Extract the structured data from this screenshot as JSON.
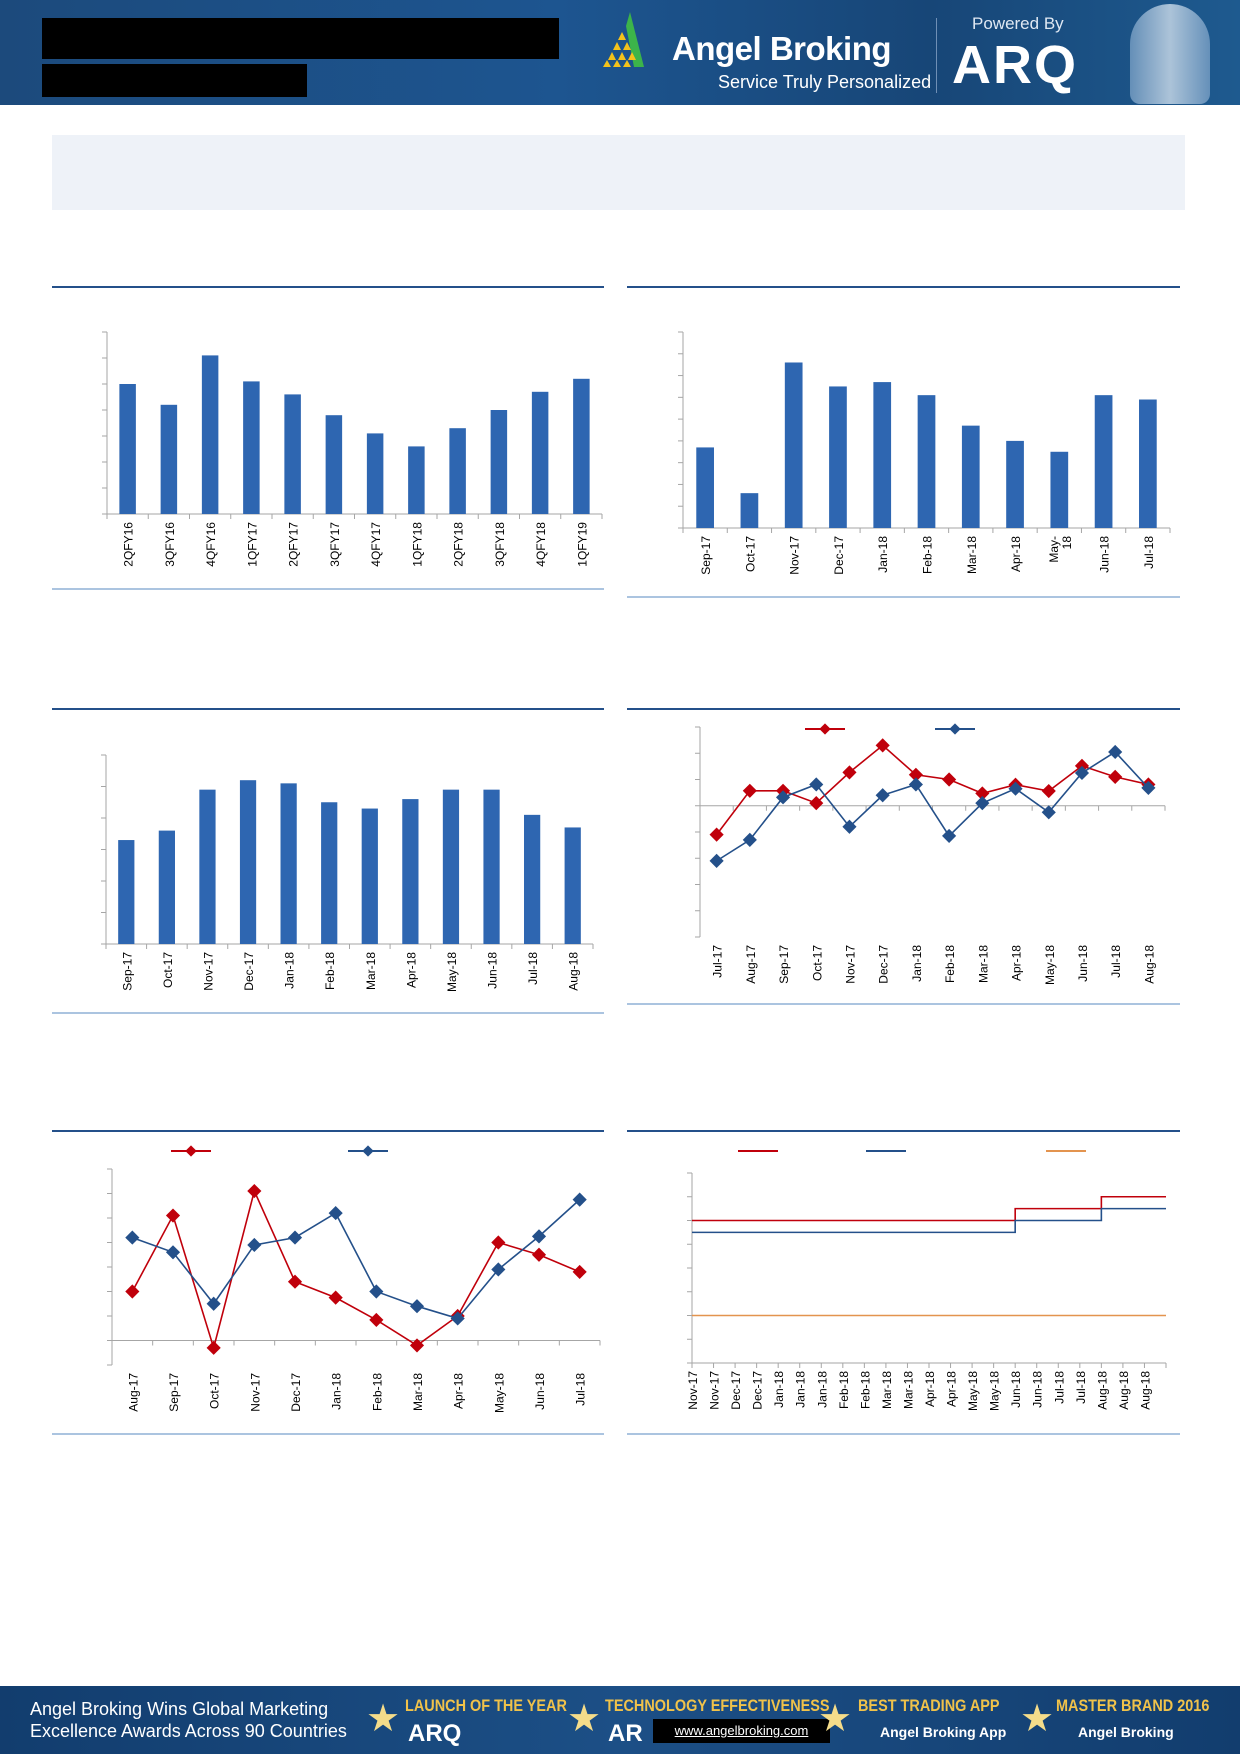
{
  "header": {
    "brand": "Angel Broking",
    "tagline": "Service Truly Personalized",
    "powered_by": "Powered By",
    "product": "ARQ"
  },
  "footer": {
    "headline_line1": "Angel Broking Wins Global Marketing",
    "headline_line2": "Excellence Awards Across 90 Countries",
    "awards": [
      {
        "title": "LAUNCH OF THE YEAR",
        "subtitle": "ARQ"
      },
      {
        "title": "TECHNOLOGY EFFECTIVENESS",
        "subtitle": "AR"
      },
      {
        "title": "BEST TRADING APP",
        "subtitle": "Angel Broking App"
      },
      {
        "title": "MASTER BRAND 2016",
        "subtitle": "Angel Broking"
      }
    ],
    "url": "www.angelbroking.com"
  },
  "colors": {
    "bar": "#2e66b1",
    "red": "#c0000b",
    "blue": "#24508a",
    "orange": "#e3944f",
    "rule": "#24508a"
  },
  "chart_data": [
    {
      "type": "bar",
      "categories": [
        "2QFY16",
        "3QFY16",
        "4QFY16",
        "1QFY17",
        "2QFY17",
        "3QFY17",
        "4QFY17",
        "1QFY18",
        "2QFY18",
        "3QFY18",
        "4QFY18",
        "1QFY19"
      ],
      "values": [
        5.0,
        4.2,
        6.1,
        5.1,
        4.6,
        3.8,
        3.1,
        2.6,
        3.3,
        4.0,
        4.7,
        5.2
      ],
      "ylim": [
        0,
        7
      ],
      "grid": false
    },
    {
      "type": "bar",
      "categories": [
        "Sep-17",
        "Oct-17",
        "Nov-17",
        "Dec-17",
        "Jan-18",
        "Feb-18",
        "Mar-18",
        "Apr-18",
        "May-\n18",
        "Jun-18",
        "Jul-18"
      ],
      "values": [
        3.7,
        1.6,
        7.6,
        6.5,
        6.7,
        6.1,
        4.7,
        4.0,
        3.5,
        6.1,
        5.9
      ],
      "ylim": [
        0,
        9
      ],
      "grid": false
    },
    {
      "type": "bar",
      "categories": [
        "Sep-17",
        "Oct-17",
        "Nov-17",
        "Dec-17",
        "Jan-18",
        "Feb-18",
        "Mar-18",
        "Apr-18",
        "May-18",
        "Jun-18",
        "Jul-18",
        "Aug-18"
      ],
      "values": [
        3.3,
        3.6,
        4.9,
        5.2,
        5.1,
        4.5,
        4.3,
        4.6,
        4.9,
        4.9,
        4.1,
        3.7
      ],
      "ylim": [
        0,
        6
      ],
      "grid": false
    },
    {
      "type": "line",
      "categories": [
        "Jul-17",
        "Aug-17",
        "Sep-17",
        "Oct-17",
        "Nov-17",
        "Dec-17",
        "Jan-18",
        "Feb-18",
        "Mar-18",
        "Apr-18",
        "May-18",
        "Jun-18",
        "Jul-18",
        "Aug-18"
      ],
      "series": [
        {
          "color": "#c0000b",
          "values": [
            -1.1,
            0.57,
            0.57,
            0.1,
            1.27,
            2.3,
            1.18,
            1.0,
            0.47,
            0.8,
            0.56,
            1.52,
            1.1,
            0.81
          ]
        },
        {
          "color": "#24508a",
          "values": [
            -2.1,
            -1.3,
            0.32,
            0.81,
            -0.8,
            0.4,
            0.81,
            -1.15,
            0.1,
            0.65,
            -0.25,
            1.25,
            2.05,
            0.68
          ]
        }
      ],
      "ylim": [
        -5,
        3
      ],
      "grid": false,
      "legend": "top"
    },
    {
      "type": "line",
      "categories": [
        "Aug-17",
        "Sep-17",
        "Oct-17",
        "Nov-17",
        "Dec-17",
        "Jan-18",
        "Feb-18",
        "Mar-18",
        "Apr-18",
        "May-18",
        "Jun-18",
        "Jul-18"
      ],
      "series": [
        {
          "color": "#c0000b",
          "values": [
            2.0,
            5.1,
            -0.3,
            6.1,
            2.4,
            1.75,
            0.84,
            -0.2,
            1.0,
            4.0,
            3.5,
            2.8
          ]
        },
        {
          "color": "#24508a",
          "values": [
            4.2,
            3.6,
            1.5,
            3.9,
            4.2,
            5.2,
            2.0,
            1.4,
            0.9,
            2.9,
            4.25,
            5.75
          ]
        }
      ],
      "ylim": [
        -1,
        7
      ],
      "grid": false,
      "legend": "top"
    },
    {
      "type": "line",
      "step": true,
      "categories": [
        "Nov-17",
        "Nov-17",
        "Dec-17",
        "Dec-17",
        "Jan-18",
        "Jan-18",
        "Jan-18",
        "Feb-18",
        "Feb-18",
        "Mar-18",
        "Mar-18",
        "Apr-18",
        "Apr-18",
        "May-18",
        "May-18",
        "Jun-18",
        "Jun-18",
        "Jul-18",
        "Jul-18",
        "Aug-18",
        "Aug-18",
        "Aug-18"
      ],
      "series": [
        {
          "color": "#c0000b",
          "values": [
            6,
            6,
            6,
            6,
            6,
            6,
            6,
            6,
            6,
            6,
            6,
            6,
            6,
            6,
            6,
            6.5,
            6.5,
            6.5,
            6.5,
            7,
            7,
            7
          ]
        },
        {
          "color": "#24508a",
          "values": [
            5.5,
            5.5,
            5.5,
            5.5,
            5.5,
            5.5,
            5.5,
            5.5,
            5.5,
            5.5,
            5.5,
            5.5,
            5.5,
            5.5,
            5.5,
            6,
            6,
            6,
            6,
            6.5,
            6.5,
            6.5
          ]
        },
        {
          "color": "#e3944f",
          "values": [
            2,
            2,
            2,
            2,
            2,
            2,
            2,
            2,
            2,
            2,
            2,
            2,
            2,
            2,
            2,
            2,
            2,
            2,
            2,
            2,
            2,
            2
          ]
        }
      ],
      "ylim": [
        0,
        8
      ],
      "grid": false,
      "legend": "top"
    }
  ]
}
